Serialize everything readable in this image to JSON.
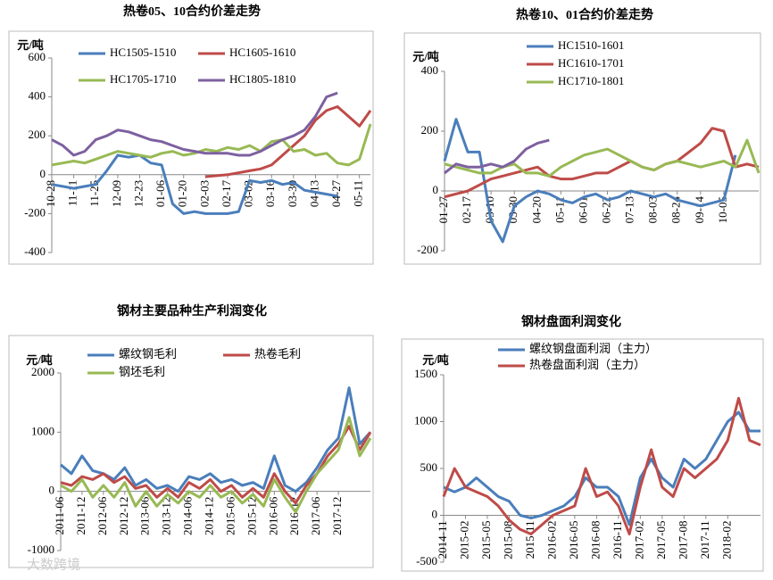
{
  "watermark": "大数跨境",
  "chart_data": [
    {
      "type": "line",
      "title": "热卷05、10合约价差走势",
      "y_label": "元/吨",
      "categories": [
        "10-28",
        null,
        "11-11",
        null,
        "11-25",
        null,
        "12-09",
        null,
        "12-23",
        null,
        "01-06",
        null,
        "01-20",
        null,
        "02-03",
        null,
        "02-17",
        null,
        "03-02",
        null,
        "03-16",
        null,
        "03-30",
        null,
        "04-13",
        null,
        "04-27",
        null,
        "05-11",
        null
      ],
      "ylim": [
        -400,
        600
      ],
      "yticks": [
        -400,
        -200,
        0,
        200,
        400,
        600
      ],
      "series": [
        {
          "name": "HC1505-1510",
          "color": "#4a7ebb",
          "values": [
            -50,
            -60,
            -70,
            -60,
            -50,
            20,
            100,
            90,
            100,
            60,
            50,
            -150,
            -200,
            -190,
            -200,
            -200,
            -200,
            -190,
            -30,
            -40,
            -30,
            -50,
            -40,
            -80,
            -90,
            -100,
            -110,
            null,
            null,
            null
          ]
        },
        {
          "name": "HC1605-1610",
          "color": "#be4b48",
          "values": [
            null,
            null,
            null,
            null,
            null,
            null,
            null,
            null,
            null,
            null,
            null,
            null,
            null,
            null,
            -10,
            -5,
            0,
            10,
            20,
            30,
            50,
            100,
            150,
            200,
            280,
            330,
            350,
            300,
            250,
            330
          ]
        },
        {
          "name": "HC1705-1710",
          "color": "#98b954",
          "values": [
            50,
            60,
            70,
            60,
            80,
            100,
            120,
            110,
            100,
            90,
            110,
            120,
            100,
            110,
            130,
            120,
            140,
            130,
            150,
            120,
            170,
            180,
            120,
            130,
            100,
            110,
            60,
            50,
            80,
            260
          ]
        },
        {
          "name": "HC1805-1810",
          "color": "#7d60a0",
          "values": [
            180,
            150,
            100,
            120,
            180,
            200,
            230,
            220,
            200,
            180,
            170,
            150,
            130,
            120,
            110,
            110,
            110,
            100,
            100,
            120,
            150,
            180,
            200,
            230,
            300,
            400,
            420,
            null,
            null,
            null
          ]
        }
      ]
    },
    {
      "type": "line",
      "title": "热卷10、01合约价差走势",
      "y_label": "元/吨",
      "categories": [
        "01-27",
        null,
        "02-17",
        null,
        "03-10",
        null,
        "03-30",
        null,
        "04-20",
        null,
        "05-11",
        null,
        "06-01",
        null,
        "06-22",
        null,
        "07-13",
        null,
        "08-03",
        null,
        "08-24",
        null,
        "09-14",
        null,
        "10-05",
        null,
        null,
        null
      ],
      "ylim": [
        -200,
        400
      ],
      "yticks": [
        -200,
        0,
        200,
        400
      ],
      "series": [
        {
          "name": "HC1510-1601",
          "color": "#4a7ebb",
          "values": [
            100,
            240,
            130,
            130,
            -100,
            -170,
            -50,
            -20,
            0,
            -10,
            -30,
            -40,
            -20,
            -10,
            -30,
            -20,
            0,
            -10,
            -20,
            -10,
            -30,
            -40,
            -50,
            -40,
            -30,
            120,
            null,
            null
          ]
        },
        {
          "name": "HC1610-1701",
          "color": "#be4b48",
          "values": [
            -20,
            -10,
            0,
            20,
            40,
            50,
            60,
            70,
            80,
            50,
            40,
            40,
            50,
            60,
            60,
            80,
            100,
            80,
            70,
            90,
            100,
            130,
            160,
            210,
            200,
            80,
            90,
            80
          ]
        },
        {
          "name": "HC1710-1801",
          "color": "#98b954",
          "values": [
            90,
            80,
            70,
            60,
            60,
            80,
            90,
            60,
            60,
            50,
            80,
            100,
            120,
            130,
            140,
            120,
            100,
            80,
            70,
            90,
            100,
            90,
            80,
            90,
            100,
            80,
            170,
            60
          ]
        },
        {
          "color": "#7d60a0",
          "values": [
            60,
            90,
            80,
            80,
            90,
            80,
            100,
            140,
            160,
            170,
            null,
            null,
            null,
            null,
            null,
            null,
            null,
            null,
            null,
            null,
            null,
            null,
            null,
            null,
            null,
            null,
            null,
            null
          ]
        }
      ]
    },
    {
      "type": "line",
      "title": "钢材主要品种生产利润变化",
      "y_label": "元/吨",
      "categories": [
        "2011-06",
        null,
        "2011-12",
        null,
        "2012-06",
        null,
        "2012-12",
        null,
        "2013-06",
        null,
        "2013-12",
        null,
        "2014-06",
        null,
        "2014-12",
        null,
        "2015-06",
        null,
        "2015-12",
        null,
        "2016-06",
        null,
        "2016-12",
        null,
        "2017-06",
        null,
        "2017-12",
        null,
        null,
        null
      ],
      "ylim": [
        -1000,
        2000
      ],
      "yticks": [
        -1000,
        0,
        1000,
        2000
      ],
      "series": [
        {
          "name": "螺纹钢毛利",
          "color": "#4a7ebb",
          "values": [
            450,
            300,
            600,
            350,
            300,
            200,
            400,
            100,
            200,
            50,
            100,
            0,
            250,
            200,
            300,
            150,
            200,
            100,
            150,
            50,
            600,
            100,
            0,
            150,
            400,
            700,
            900,
            1750,
            800,
            1000
          ]
        },
        {
          "name": "热卷毛利",
          "color": "#be4b48",
          "values": [
            150,
            100,
            250,
            200,
            300,
            150,
            250,
            50,
            100,
            -100,
            50,
            -100,
            150,
            50,
            200,
            0,
            100,
            -100,
            50,
            -100,
            300,
            0,
            -200,
            100,
            300,
            600,
            800,
            1100,
            700,
            1000
          ]
        },
        {
          "name": "钢坯毛利",
          "color": "#98b954",
          "values": [
            100,
            0,
            200,
            -100,
            100,
            -100,
            150,
            -250,
            0,
            -250,
            -50,
            -200,
            0,
            -100,
            100,
            -100,
            0,
            -200,
            -50,
            -250,
            200,
            -100,
            -350,
            0,
            300,
            500,
            700,
            1250,
            600,
            900
          ]
        }
      ]
    },
    {
      "type": "line",
      "title": "钢材盘面利润变化",
      "y_label": "元/吨",
      "categories": [
        "2014-11",
        null,
        "2015-02",
        null,
        "2015-05",
        null,
        "2015-08",
        null,
        "2015-11",
        null,
        "2016-02",
        null,
        "2016-05",
        null,
        "2016-08",
        null,
        "2016-11",
        null,
        "2017-02",
        null,
        "2017-05",
        null,
        "2017-08",
        null,
        "2017-11",
        null,
        "2018-02",
        null,
        null,
        null
      ],
      "ylim": [
        -500,
        1500
      ],
      "yticks": [
        -500,
        0,
        500,
        1000,
        1500
      ],
      "series": [
        {
          "name": "螺纹钢盘面利润（主力）",
          "color": "#4a7ebb",
          "values": [
            300,
            250,
            300,
            400,
            300,
            200,
            150,
            0,
            -30,
            0,
            50,
            100,
            200,
            400,
            300,
            300,
            200,
            -100,
            400,
            600,
            400,
            300,
            600,
            500,
            600,
            800,
            1000,
            1100,
            900,
            900
          ]
        },
        {
          "name": "热卷盘面利润（主力）",
          "color": "#be4b48",
          "values": [
            200,
            500,
            300,
            250,
            200,
            100,
            -50,
            -150,
            -200,
            -100,
            0,
            50,
            100,
            500,
            200,
            250,
            100,
            -200,
            300,
            700,
            300,
            200,
            500,
            400,
            500,
            600,
            800,
            1250,
            800,
            750
          ]
        }
      ]
    }
  ]
}
